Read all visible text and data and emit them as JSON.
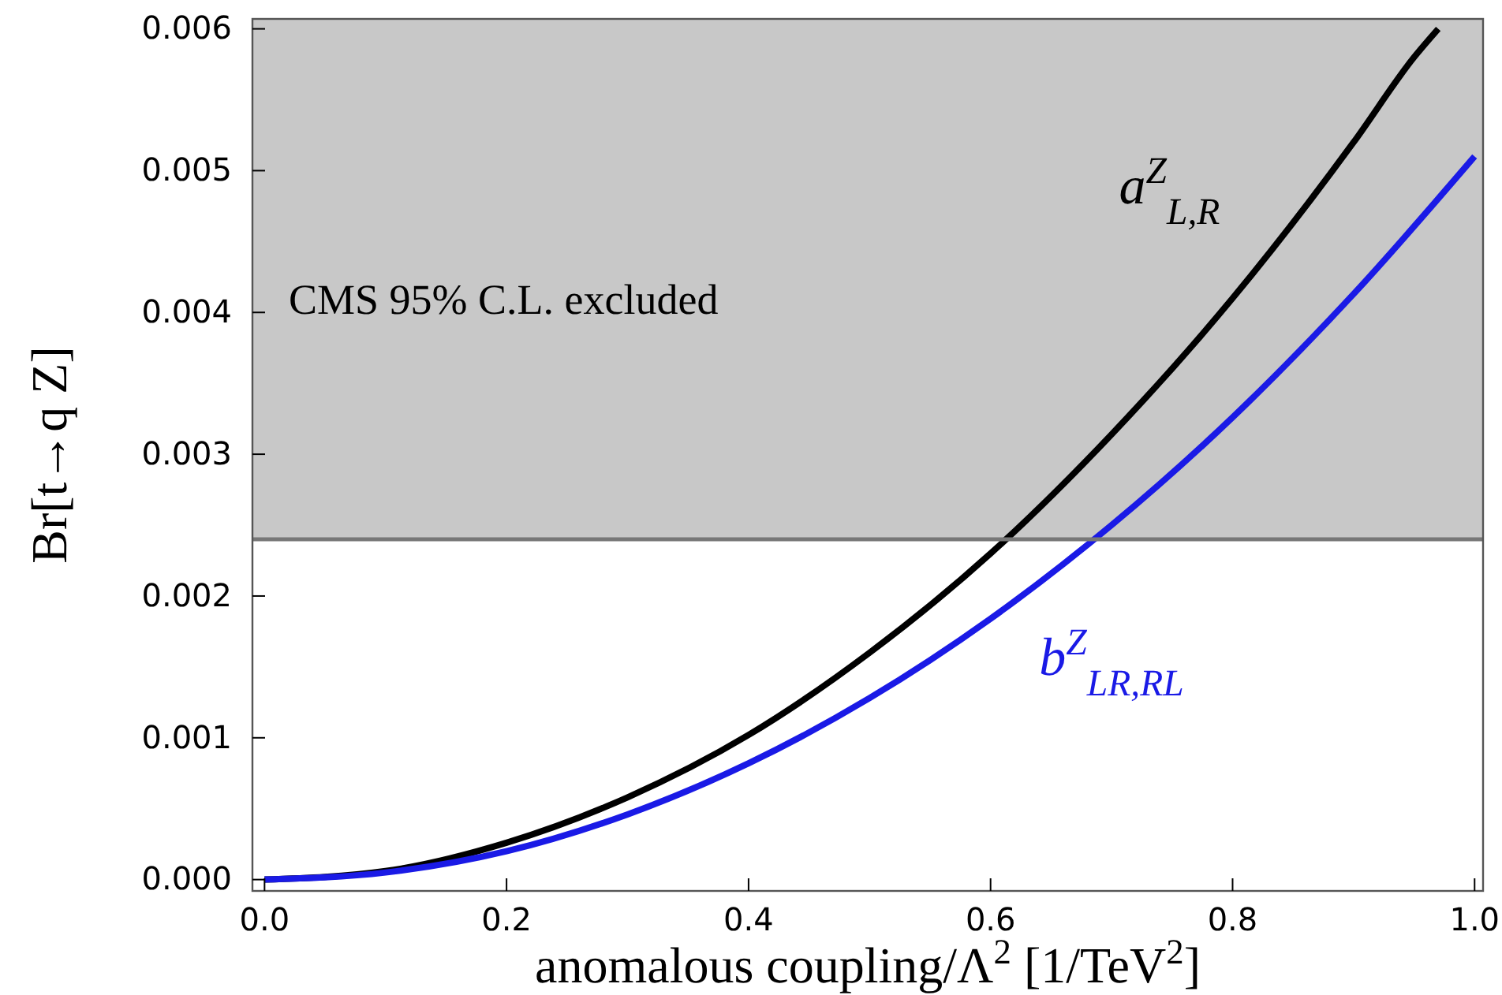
{
  "chart_data": {
    "type": "line",
    "xlabel": "anomalous coupling/Λ$^{2}$ [1/TeV$^{2}$]",
    "ylabel": "Br[t→q Z]",
    "xlim": [
      -0.01,
      1.007
    ],
    "ylim": [
      -8e-05,
      0.00607
    ],
    "xticks": [
      {
        "value": 0,
        "label": "0.0"
      },
      {
        "value": 0.2,
        "label": "0.2"
      },
      {
        "value": 0.4,
        "label": "0.4"
      },
      {
        "value": 0.6,
        "label": "0.6"
      },
      {
        "value": 0.8,
        "label": "0.8"
      },
      {
        "value": 1,
        "label": "1.0"
      }
    ],
    "yticks": [
      {
        "value": 0,
        "label": "0.000"
      },
      {
        "value": 0.001,
        "label": "0.001"
      },
      {
        "value": 0.002,
        "label": "0.002"
      },
      {
        "value": 0.003,
        "label": "0.003"
      },
      {
        "value": 0.004,
        "label": "0.004"
      },
      {
        "value": 0.005,
        "label": "0.005"
      },
      {
        "value": 0.006,
        "label": "0.006"
      }
    ],
    "grid": false,
    "line_style": "solid",
    "marker": "none",
    "ref_lines": [
      {
        "axis": "y",
        "value": 0.0024,
        "color": "#777777"
      }
    ],
    "bands": [
      {
        "axis": "y",
        "from": 0.0024,
        "to": 0.00607,
        "label": "CMS 95% C.L. excluded",
        "color": "#c8c8c8"
      }
    ],
    "series": [
      {
        "name": "a$^{Z}$$_{L,R}$",
        "color": "#000000",
        "x": [
          0,
          0.1,
          0.2,
          0.3,
          0.4,
          0.5,
          0.6,
          0.7,
          0.8,
          0.9,
          0.95,
          0.97
        ],
        "values": [
          0,
          6e-05,
          0.00026,
          0.00058,
          0.00102,
          0.0016,
          0.0023,
          0.00314,
          0.0041,
          0.0052,
          0.0058,
          0.006
        ]
      },
      {
        "name": "b$^{Z}$$_{LR,RL}$",
        "color": "#1a1ae6",
        "x": [
          0,
          0.1,
          0.2,
          0.3,
          0.4,
          0.5,
          0.6,
          0.7,
          0.8,
          0.9,
          1.0
        ],
        "values": [
          0,
          5e-05,
          0.0002,
          0.00046,
          0.00082,
          0.00128,
          0.00184,
          0.0025,
          0.00326,
          0.00413,
          0.0051
        ]
      }
    ]
  }
}
